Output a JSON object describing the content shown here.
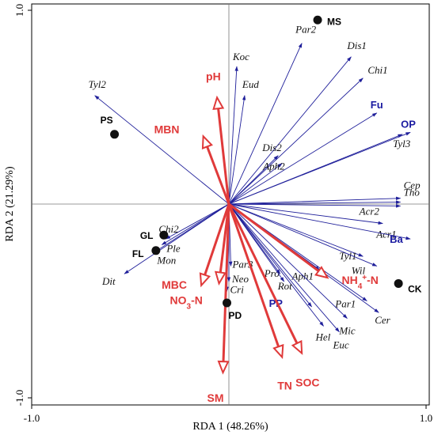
{
  "chart_data": {
    "type": "scatter",
    "xlabel": "RDA 1 (48.26%)",
    "ylabel": "RDA 2 (21.29%)",
    "xlim": [
      -1.0,
      1.0
    ],
    "ylim": [
      -1.0,
      1.0
    ],
    "x_ticks": [
      "-1.0",
      "1.0"
    ],
    "y_ticks": [
      "1.0",
      "-1.0"
    ],
    "x_ticks_values": [
      -1.0,
      1.0
    ],
    "y_ticks_values": [
      1.0,
      -1.0
    ],
    "zero_lines": true,
    "species": [
      {
        "label": "Tyl2",
        "x": -0.68,
        "y": 0.56
      },
      {
        "label": "Koc",
        "x": 0.04,
        "y": 0.71
      },
      {
        "label": "Eud",
        "x": 0.08,
        "y": 0.56
      },
      {
        "label": "Par2",
        "x": 0.37,
        "y": 0.83
      },
      {
        "label": "Dis1",
        "x": 0.62,
        "y": 0.76
      },
      {
        "label": "Chi1",
        "x": 0.68,
        "y": 0.65
      },
      {
        "label": "Dis2",
        "x": 0.25,
        "y": 0.25
      },
      {
        "label": "Aph2",
        "x": 0.27,
        "y": 0.21
      },
      {
        "label": "Tyl3",
        "x": 0.88,
        "y": 0.36
      },
      {
        "label": "Cep",
        "x": 0.87,
        "y": 0.03
      },
      {
        "label": "Tho",
        "x": 0.87,
        "y": 0.01
      },
      {
        "label": "Acr2",
        "x": 0.87,
        "y": -0.01
      },
      {
        "label": "Acr1",
        "x": 0.78,
        "y": -0.1
      },
      {
        "label": "Tyl1",
        "x": 0.68,
        "y": -0.27
      },
      {
        "label": "Wil",
        "x": 0.75,
        "y": -0.32
      },
      {
        "label": "Aph1",
        "x": 0.46,
        "y": -0.34
      },
      {
        "label": "Par1",
        "x": 0.7,
        "y": -0.5
      },
      {
        "label": "Cer",
        "x": 0.76,
        "y": -0.56
      },
      {
        "label": "Mic",
        "x": 0.6,
        "y": -0.59
      },
      {
        "label": "Euc",
        "x": 0.56,
        "y": -0.66
      },
      {
        "label": "Hel",
        "x": 0.48,
        "y": -0.63
      },
      {
        "label": "Pro",
        "x": 0.26,
        "y": -0.36
      },
      {
        "label": "Rot",
        "x": 0.28,
        "y": -0.4
      },
      {
        "label": "Par3",
        "x": 0.01,
        "y": -0.32
      },
      {
        "label": "Neo",
        "x": 0.0,
        "y": -0.4
      },
      {
        "label": "Cri",
        "x": -0.01,
        "y": -0.45
      },
      {
        "label": "Chi2",
        "x": -0.32,
        "y": -0.18
      },
      {
        "label": "Ple",
        "x": -0.34,
        "y": -0.21
      },
      {
        "label": "Mon",
        "x": -0.38,
        "y": -0.25
      },
      {
        "label": "Dit",
        "x": -0.53,
        "y": -0.36
      }
    ],
    "functional_groups": [
      {
        "label": "Fu",
        "x": 0.75,
        "y": 0.47
      },
      {
        "label": "OP",
        "x": 0.92,
        "y": 0.37
      },
      {
        "label": "Ba",
        "x": 0.92,
        "y": -0.18
      },
      {
        "label": "PP",
        "x": 0.42,
        "y": -0.53
      }
    ],
    "environmental_variables": [
      {
        "label": "pH",
        "x": -0.06,
        "y": 0.55
      },
      {
        "label": "MBN",
        "x": -0.13,
        "y": 0.35
      },
      {
        "label": "MBC",
        "x": -0.14,
        "y": -0.42
      },
      {
        "label": "NO3-N",
        "x": -0.05,
        "y": -0.41
      },
      {
        "label": "NH4+-N",
        "x": 0.5,
        "y": -0.38
      },
      {
        "label": "SOC",
        "x": 0.37,
        "y": -0.77
      },
      {
        "label": "TN",
        "x": 0.27,
        "y": -0.79
      },
      {
        "label": "SM",
        "x": -0.03,
        "y": -0.87
      }
    ],
    "sites": [
      {
        "label": "MS",
        "x": 0.45,
        "y": 0.95
      },
      {
        "label": "PS",
        "x": -0.58,
        "y": 0.36
      },
      {
        "label": "GL",
        "x": -0.33,
        "y": -0.16
      },
      {
        "label": "FL",
        "x": -0.37,
        "y": -0.24
      },
      {
        "label": "PD",
        "x": -0.01,
        "y": -0.51
      },
      {
        "label": "CK",
        "x": 0.86,
        "y": -0.41
      }
    ]
  }
}
